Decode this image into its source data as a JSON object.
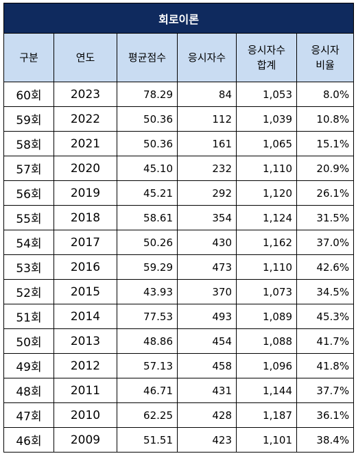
{
  "table": {
    "title": "회로이론",
    "headers": [
      "구분",
      "연도",
      "평균점수",
      "응시자수",
      "응시자수\n합계",
      "응시자\n비율"
    ],
    "rows": [
      [
        "60회",
        "2023",
        "78.29",
        "84",
        "1,053",
        "8.0%"
      ],
      [
        "59회",
        "2022",
        "50.36",
        "112",
        "1,039",
        "10.8%"
      ],
      [
        "58회",
        "2021",
        "50.36",
        "161",
        "1,065",
        "15.1%"
      ],
      [
        "57회",
        "2020",
        "45.10",
        "232",
        "1,110",
        "20.9%"
      ],
      [
        "56회",
        "2019",
        "45.21",
        "292",
        "1,120",
        "26.1%"
      ],
      [
        "55회",
        "2018",
        "58.61",
        "354",
        "1,124",
        "31.5%"
      ],
      [
        "54회",
        "2017",
        "50.26",
        "430",
        "1,162",
        "37.0%"
      ],
      [
        "53회",
        "2016",
        "59.29",
        "473",
        "1,110",
        "42.6%"
      ],
      [
        "52회",
        "2015",
        "43.93",
        "370",
        "1,073",
        "34.5%"
      ],
      [
        "51회",
        "2014",
        "77.53",
        "493",
        "1,089",
        "45.3%"
      ],
      [
        "50회",
        "2013",
        "48.86",
        "454",
        "1,088",
        "41.7%"
      ],
      [
        "49회",
        "2012",
        "57.13",
        "458",
        "1,096",
        "41.8%"
      ],
      [
        "48회",
        "2011",
        "46.71",
        "431",
        "1,144",
        "37.7%"
      ],
      [
        "47회",
        "2010",
        "62.25",
        "428",
        "1,187",
        "36.1%"
      ],
      [
        "46회",
        "2009",
        "51.51",
        "423",
        "1,101",
        "38.4%"
      ]
    ]
  },
  "colors": {
    "title_bg": "#0f2a5e",
    "header_bg": "#c9dcf2"
  }
}
